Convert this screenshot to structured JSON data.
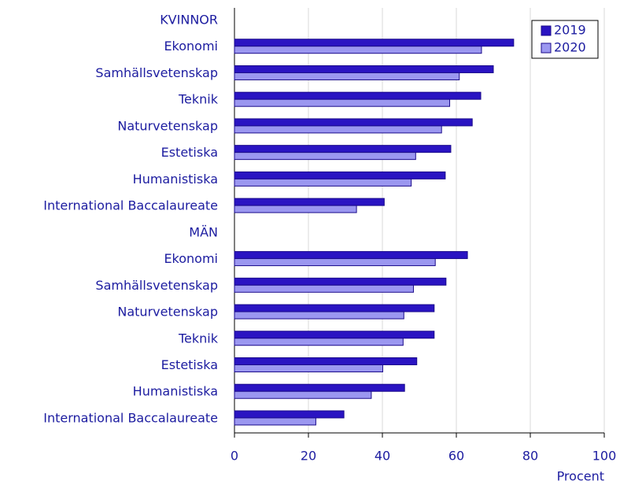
{
  "chart_data": {
    "type": "barh",
    "categories": [
      "KVINNOR",
      "Ekonomi",
      "Samhällsvetenskap",
      "Teknik",
      "Naturvetenskap",
      "Estetiska",
      "Humanistiska",
      "International Baccalaureate",
      "MÄN",
      "Ekonomi",
      "Samhällsvetenskap",
      "Naturvetenskap",
      "Teknik",
      "Estetiska",
      "Humanistiska",
      "International Baccalaureate"
    ],
    "series": [
      {
        "name": "2019",
        "color": "#2a14c2",
        "values": [
          null,
          75.5,
          70,
          66.6,
          64.3,
          58.5,
          57,
          40.5,
          null,
          63,
          57.2,
          54,
          54,
          49.3,
          46,
          29.6
        ]
      },
      {
        "name": "2020",
        "color": "#9b97f0",
        "values": [
          null,
          66.8,
          60.8,
          58.2,
          56,
          49,
          47.8,
          33,
          null,
          54.3,
          48.4,
          45.8,
          45.6,
          40.1,
          37,
          22
        ]
      }
    ],
    "xlim": [
      0,
      100
    ],
    "xticks": [
      0,
      20,
      40,
      60,
      80,
      100
    ],
    "xlabel": "Procent",
    "grid": true,
    "legend": "upper right"
  }
}
